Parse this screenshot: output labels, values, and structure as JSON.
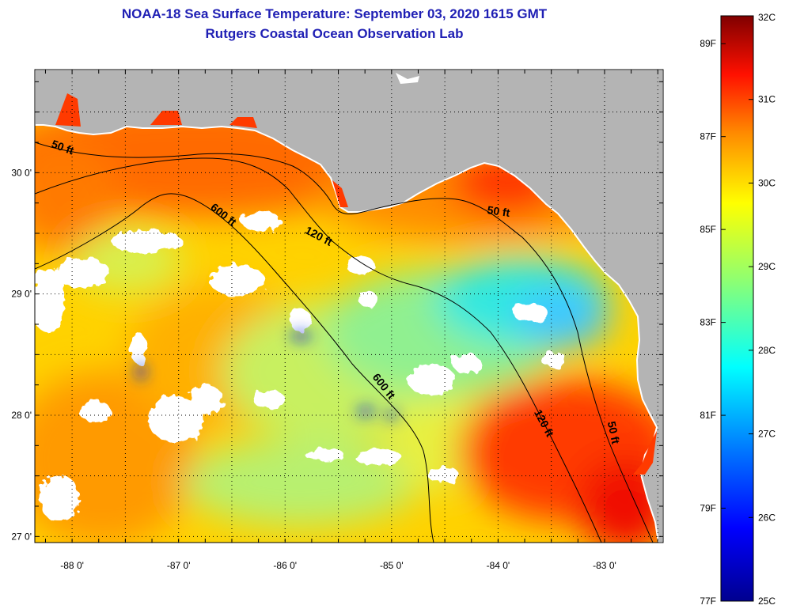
{
  "title": "NOAA-18 Sea Surface Temperature:  September 03, 2020 1615 GMT",
  "subtitle": "Rutgers Coastal Ocean Observation Lab",
  "map": {
    "lon_range": [
      -88.35,
      -82.45
    ],
    "lat_range": [
      26.95,
      30.85
    ],
    "lon_ticks": [
      {
        "value": -88,
        "label": "-88 0'"
      },
      {
        "value": -87,
        "label": "-87 0'"
      },
      {
        "value": -86,
        "label": "-86 0'"
      },
      {
        "value": -85,
        "label": "-85 0'"
      },
      {
        "value": -84,
        "label": "-84 0'"
      },
      {
        "value": -83,
        "label": "-83 0'"
      }
    ],
    "lat_ticks": [
      {
        "value": 30,
        "label": "30 0'"
      },
      {
        "value": 29,
        "label": "29 0'"
      },
      {
        "value": 28,
        "label": "28 0'"
      },
      {
        "value": 27,
        "label": "27 0'"
      }
    ],
    "depth_labels": [
      {
        "text": "50 ft",
        "lon": -88.1,
        "lat": 30.18,
        "angle": 20
      },
      {
        "text": "600 ft",
        "lon": -86.6,
        "lat": 29.63,
        "angle": 38
      },
      {
        "text": "120 ft",
        "lon": -85.7,
        "lat": 29.45,
        "angle": 28
      },
      {
        "text": "50 ft",
        "lon": -84.0,
        "lat": 29.65,
        "angle": 8
      },
      {
        "text": "600 ft",
        "lon": -85.1,
        "lat": 28.22,
        "angle": 52
      },
      {
        "text": "120 ft",
        "lon": -83.6,
        "lat": 27.92,
        "angle": 62
      },
      {
        "text": "50 ft",
        "lon": -82.95,
        "lat": 27.85,
        "angle": 78
      }
    ]
  },
  "colorbar": {
    "celsius": [
      "32C",
      "31C",
      "30C",
      "29C",
      "28C",
      "27C",
      "26C",
      "25C"
    ],
    "fahrenheit": [
      "89F",
      "87F",
      "85F",
      "83F",
      "81F",
      "79F",
      "77F"
    ],
    "fahrenheit_values": [
      89,
      87,
      85,
      83,
      81,
      79,
      77
    ],
    "range_c": [
      25,
      32
    ],
    "colors": [
      "#00008f",
      "#0000ff",
      "#0080ff",
      "#00ffff",
      "#80ff80",
      "#ffff00",
      "#ff8000",
      "#ff0000",
      "#800000"
    ]
  }
}
